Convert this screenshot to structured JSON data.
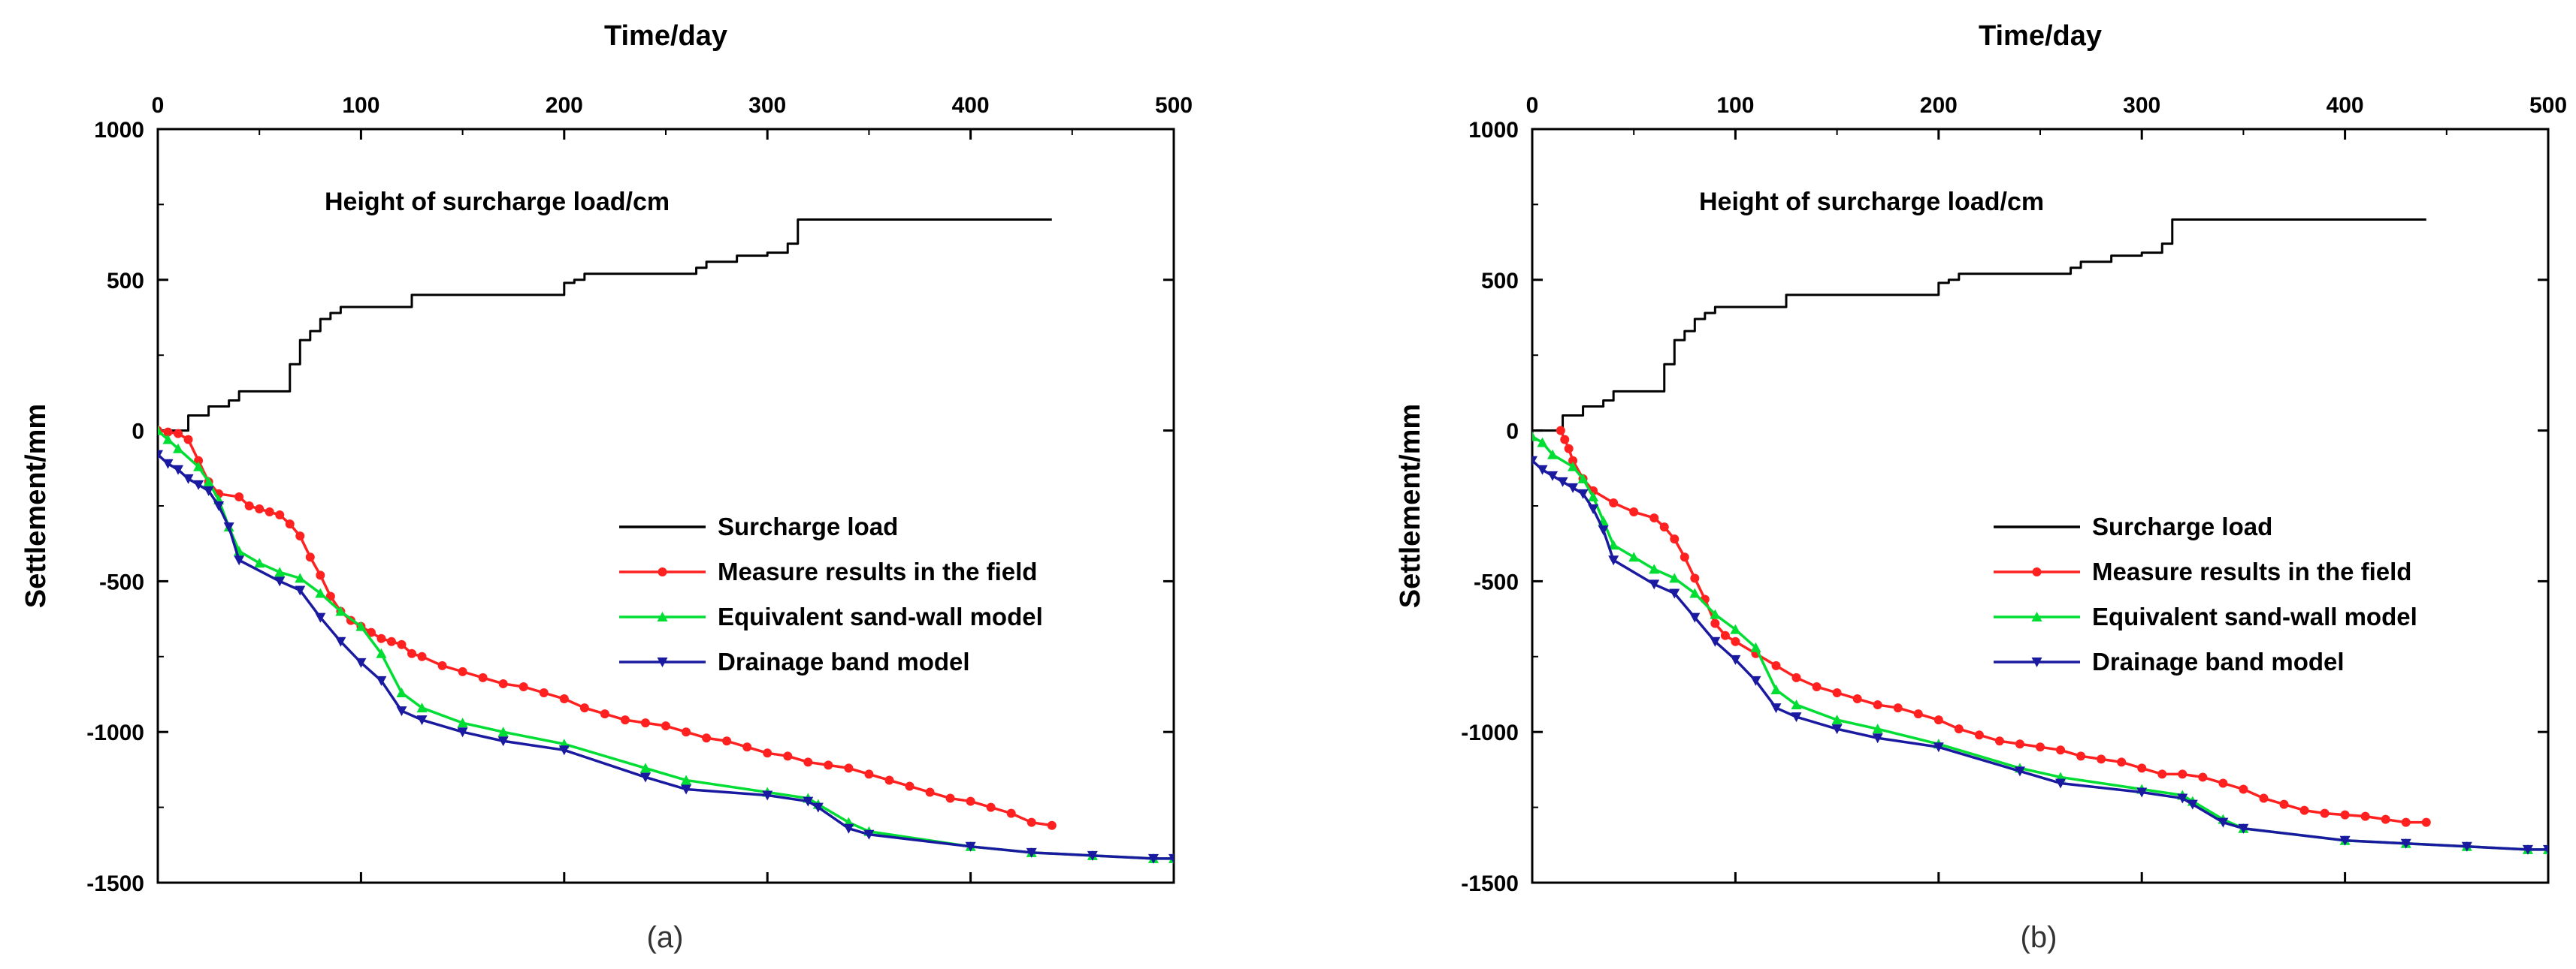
{
  "colors": {
    "surcharge": "#000000",
    "measured": "#ff2020",
    "sandwall": "#00dd33",
    "drainage": "#1a1aa0"
  },
  "chart_data": [
    {
      "type": "line",
      "panel_label": "(a)",
      "title": "",
      "xlabel": "Time/day",
      "ylabel": "Settlement/mm",
      "xlim": [
        0,
        500
      ],
      "ylim": [
        -1500,
        1000
      ],
      "xticks": [
        0,
        100,
        200,
        300,
        400,
        500
      ],
      "yticks": [
        -1500,
        -1000,
        -500,
        0,
        500,
        1000
      ],
      "annotation": "Height of surcharge load/cm",
      "legend_position": "center-right",
      "series": [
        {
          "name": "Surcharge load",
          "color_key": "surcharge",
          "marker": "none",
          "step": true,
          "x": [
            0,
            10,
            15,
            20,
            25,
            30,
            35,
            40,
            62,
            65,
            70,
            75,
            80,
            85,
            90,
            100,
            120,
            125,
            180,
            200,
            205,
            210,
            230,
            260,
            265,
            270,
            285,
            300,
            310,
            315,
            320,
            440
          ],
          "y": [
            0,
            0,
            50,
            50,
            80,
            80,
            100,
            130,
            130,
            220,
            300,
            330,
            370,
            390,
            410,
            410,
            410,
            450,
            450,
            490,
            500,
            520,
            520,
            520,
            540,
            560,
            580,
            590,
            620,
            700,
            700,
            700
          ]
        },
        {
          "name": "Measure results in the field",
          "color_key": "measured",
          "marker": "circle",
          "x": [
            0,
            5,
            10,
            15,
            20,
            25,
            30,
            40,
            45,
            50,
            55,
            60,
            65,
            70,
            75,
            80,
            85,
            90,
            95,
            100,
            105,
            110,
            115,
            120,
            125,
            130,
            140,
            150,
            160,
            170,
            180,
            190,
            200,
            210,
            220,
            230,
            240,
            250,
            260,
            270,
            280,
            290,
            300,
            310,
            320,
            330,
            340,
            350,
            360,
            370,
            380,
            390,
            400,
            410,
            420,
            430,
            440
          ],
          "y": [
            0,
            -5,
            -10,
            -30,
            -100,
            -170,
            -210,
            -220,
            -250,
            -260,
            -270,
            -280,
            -310,
            -350,
            -420,
            -480,
            -550,
            -600,
            -630,
            -650,
            -670,
            -690,
            -700,
            -710,
            -740,
            -750,
            -780,
            -800,
            -820,
            -840,
            -850,
            -870,
            -890,
            -920,
            -940,
            -960,
            -970,
            -980,
            -1000,
            -1020,
            -1030,
            -1050,
            -1070,
            -1080,
            -1100,
            -1110,
            -1120,
            -1140,
            -1160,
            -1180,
            -1200,
            -1220,
            -1230,
            -1250,
            -1270,
            -1300,
            -1310
          ]
        },
        {
          "name": "Equivalent sand-wall model",
          "color_key": "sandwall",
          "marker": "triangle-up",
          "x": [
            0,
            5,
            10,
            20,
            25,
            30,
            35,
            40,
            50,
            60,
            70,
            80,
            90,
            100,
            110,
            120,
            130,
            150,
            170,
            200,
            240,
            260,
            300,
            320,
            325,
            340,
            350,
            400,
            430,
            460,
            490,
            500
          ],
          "y": [
            0,
            -30,
            -60,
            -120,
            -170,
            -230,
            -320,
            -400,
            -440,
            -470,
            -490,
            -540,
            -600,
            -650,
            -740,
            -870,
            -920,
            -970,
            -1000,
            -1040,
            -1120,
            -1160,
            -1200,
            -1220,
            -1240,
            -1300,
            -1330,
            -1380,
            -1400,
            -1410,
            -1420,
            -1420
          ]
        },
        {
          "name": "Drainage band model",
          "color_key": "drainage",
          "marker": "triangle-down",
          "x": [
            0,
            5,
            10,
            15,
            20,
            25,
            30,
            35,
            40,
            60,
            70,
            80,
            90,
            100,
            110,
            120,
            130,
            150,
            170,
            200,
            240,
            260,
            300,
            320,
            325,
            340,
            350,
            400,
            430,
            460,
            490,
            500
          ],
          "y": [
            -80,
            -110,
            -130,
            -160,
            -180,
            -200,
            -250,
            -320,
            -430,
            -500,
            -530,
            -620,
            -700,
            -770,
            -830,
            -930,
            -960,
            -1000,
            -1030,
            -1060,
            -1150,
            -1190,
            -1210,
            -1230,
            -1250,
            -1320,
            -1340,
            -1380,
            -1400,
            -1410,
            -1420,
            -1420
          ]
        }
      ]
    },
    {
      "type": "line",
      "panel_label": "(b)",
      "title": "",
      "xlabel": "Time/day",
      "ylabel": "Settlement/mm",
      "xlim": [
        0,
        500
      ],
      "ylim": [
        -1500,
        1000
      ],
      "xticks": [
        0,
        100,
        200,
        300,
        400,
        500
      ],
      "yticks": [
        -1500,
        -1000,
        -500,
        0,
        500,
        1000
      ],
      "annotation": "Height of surcharge load/cm",
      "legend_position": "center-right",
      "series": [
        {
          "name": "Surcharge load",
          "color_key": "surcharge",
          "marker": "none",
          "step": true,
          "x": [
            0,
            10,
            15,
            20,
            25,
            30,
            35,
            40,
            62,
            65,
            70,
            75,
            80,
            85,
            90,
            100,
            120,
            125,
            180,
            200,
            205,
            210,
            230,
            260,
            265,
            270,
            285,
            300,
            310,
            315,
            320,
            440
          ],
          "y": [
            0,
            0,
            50,
            50,
            80,
            80,
            100,
            130,
            130,
            220,
            300,
            330,
            370,
            390,
            410,
            410,
            410,
            450,
            450,
            490,
            500,
            520,
            520,
            520,
            540,
            560,
            580,
            590,
            620,
            700,
            700,
            700
          ]
        },
        {
          "name": "Measure results in the field",
          "color_key": "measured",
          "marker": "circle",
          "x": [
            14,
            16,
            18,
            20,
            25,
            30,
            40,
            50,
            60,
            65,
            70,
            75,
            80,
            85,
            90,
            95,
            100,
            110,
            120,
            130,
            140,
            150,
            160,
            170,
            180,
            190,
            200,
            210,
            220,
            230,
            240,
            250,
            260,
            270,
            280,
            290,
            300,
            310,
            320,
            330,
            340,
            350,
            360,
            370,
            380,
            390,
            400,
            410,
            420,
            430,
            440
          ],
          "y": [
            0,
            -30,
            -60,
            -100,
            -160,
            -200,
            -240,
            -270,
            -290,
            -320,
            -360,
            -420,
            -490,
            -560,
            -640,
            -680,
            -700,
            -740,
            -780,
            -820,
            -850,
            -870,
            -890,
            -910,
            -920,
            -940,
            -960,
            -990,
            -1010,
            -1030,
            -1040,
            -1050,
            -1060,
            -1080,
            -1090,
            -1100,
            -1120,
            -1140,
            -1140,
            -1150,
            -1170,
            -1190,
            -1220,
            -1240,
            -1260,
            -1270,
            -1275,
            -1280,
            -1290,
            -1300,
            -1300
          ]
        },
        {
          "name": "Equivalent sand-wall model",
          "color_key": "sandwall",
          "marker": "triangle-up",
          "x": [
            0,
            5,
            10,
            20,
            25,
            30,
            35,
            40,
            50,
            60,
            70,
            80,
            90,
            100,
            110,
            120,
            130,
            150,
            170,
            200,
            240,
            260,
            300,
            320,
            325,
            340,
            350,
            400,
            430,
            460,
            490,
            500
          ],
          "y": [
            -20,
            -40,
            -80,
            -120,
            -160,
            -220,
            -300,
            -380,
            -420,
            -460,
            -490,
            -540,
            -610,
            -660,
            -720,
            -860,
            -910,
            -960,
            -990,
            -1040,
            -1120,
            -1150,
            -1190,
            -1210,
            -1230,
            -1290,
            -1320,
            -1360,
            -1370,
            -1380,
            -1390,
            -1390
          ]
        },
        {
          "name": "Drainage band model",
          "color_key": "drainage",
          "marker": "triangle-down",
          "x": [
            0,
            5,
            10,
            15,
            20,
            25,
            30,
            35,
            40,
            60,
            70,
            80,
            90,
            100,
            110,
            120,
            130,
            150,
            170,
            200,
            240,
            260,
            300,
            320,
            325,
            340,
            350,
            400,
            430,
            460,
            490,
            500
          ],
          "y": [
            -100,
            -130,
            -150,
            -170,
            -190,
            -210,
            -260,
            -330,
            -430,
            -510,
            -540,
            -620,
            -700,
            -760,
            -830,
            -920,
            -950,
            -990,
            -1020,
            -1050,
            -1130,
            -1170,
            -1200,
            -1220,
            -1240,
            -1300,
            -1320,
            -1360,
            -1370,
            -1380,
            -1390,
            -1390
          ]
        }
      ]
    }
  ]
}
